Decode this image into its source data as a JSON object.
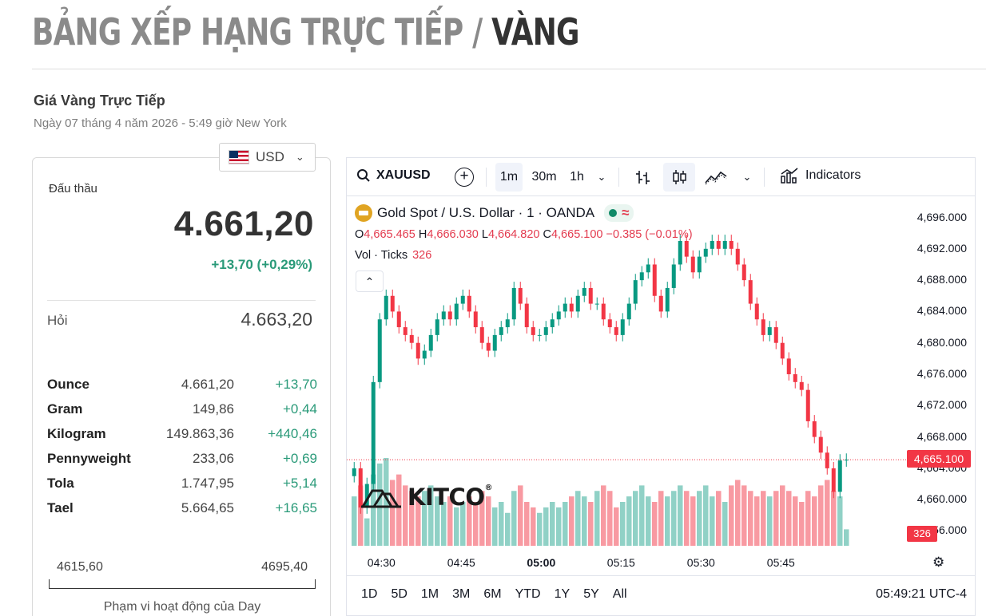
{
  "page_title": {
    "prefix": "BẢNG XẾP HẠNG TRỰC TIẾP / ",
    "metal": "VÀNG"
  },
  "live": {
    "title": "Giá Vàng Trực Tiếp",
    "date": "Ngày 07 tháng 4 năm 2026 - 5:49 giờ New York"
  },
  "currency": {
    "selected": "USD",
    "flag_icon": "us-flag-icon"
  },
  "quote": {
    "bid_label": "Đấu thầu",
    "bid": "4.661,20",
    "change": "+13,70 (+0,29%)",
    "ask_label": "Hỏi",
    "ask": "4.663,20",
    "change_color": "#2a9a79"
  },
  "units": [
    {
      "name": "Ounce",
      "price": "4.661,20",
      "change": "+13,70"
    },
    {
      "name": "Gram",
      "price": "149,86",
      "change": "+0,44"
    },
    {
      "name": "Kilogram",
      "price": "149.863,36",
      "change": "+440,46"
    },
    {
      "name": "Pennyweight",
      "price": "233,06",
      "change": "+0,69"
    },
    {
      "name": "Tola",
      "price": "1.747,95",
      "change": "+5,14"
    },
    {
      "name": "Tael",
      "price": "5.664,65",
      "change": "+16,65"
    }
  ],
  "day_range": {
    "low": "4615,60",
    "high": "4695,40",
    "caption": "Phạm vi hoạt động của Day"
  },
  "toolbar": {
    "symbol": "XAUUSD",
    "intervals": [
      "1m",
      "30m",
      "1h"
    ],
    "active_interval": "1m",
    "indicators_label": "Indicators"
  },
  "legend": {
    "instrument": "Gold Spot / U.S. Dollar · 1 · OANDA",
    "open_label": "O",
    "open": "4,665.465",
    "high_label": "H",
    "high": "4,666.030",
    "low_label": "L",
    "low": "4,664.820",
    "close_label": "C",
    "close": "4,665.100",
    "change": "−0.385 (−0.01%)",
    "vol_label": "Vol · Ticks",
    "vol_value": "326",
    "down_color": "#f23645",
    "up_color": "#089981"
  },
  "watermark": {
    "brand": "KITCO",
    "reg": "®"
  },
  "current_price_badge": "4,665.100",
  "current_volume_badge": "326",
  "bottom": {
    "ranges": [
      "1D",
      "5D",
      "1M",
      "3M",
      "6M",
      "YTD",
      "1Y",
      "5Y",
      "All"
    ],
    "clock": "05:49:21 UTC-4"
  },
  "chart_data": {
    "type": "candlestick",
    "title": "Gold Spot / U.S. Dollar · 1 · OANDA",
    "xlabel": "",
    "ylabel": "",
    "ylim": [
      4653.2,
      4698.7
    ],
    "y_ticks": [
      "4,696.000",
      "4,692.000",
      "4,688.000",
      "4,684.000",
      "4,680.000",
      "4,676.000",
      "4,672.000",
      "4,668.000",
      "4,664.000",
      "4,660.000",
      "4,656.000"
    ],
    "y_tick_values": [
      4696,
      4692,
      4688,
      4684,
      4680,
      4676,
      4672,
      4668,
      4664,
      4660,
      4656
    ],
    "x_ticks": [
      "04:30",
      "04:45",
      "05:00",
      "05:15",
      "05:30",
      "05:45"
    ],
    "x_tick_minutes": [
      270,
      285,
      300,
      315,
      330,
      345
    ],
    "x_bold_tick": "05:00",
    "time_start_minute": 265,
    "last_price": 4665.1,
    "closes": [
      4664,
      4659,
      4662,
      4675,
      4683,
      4686,
      4684,
      4682,
      4681,
      4680,
      4678,
      4679,
      4681,
      4683,
      4684,
      4683,
      4685,
      4686,
      4684,
      4682,
      4680,
      4679,
      4681,
      4682,
      4683,
      4687,
      4685,
      4682,
      4681,
      4681,
      4682,
      4683,
      4684,
      4685,
      4684,
      4686,
      4687,
      4685,
      4685,
      4683,
      4682,
      4681,
      4683,
      4685,
      4688,
      4689,
      4690,
      4686,
      4684,
      4687,
      4690,
      4693,
      4691,
      4689,
      4691,
      4692,
      4693,
      4692,
      4693,
      4692,
      4690,
      4688,
      4685,
      4683,
      4681,
      4682,
      4680,
      4678,
      4676,
      4675,
      4674,
      4670,
      4668,
      4666,
      4664,
      4661,
      4665,
      4665.1
    ],
    "volumes": [
      9,
      11,
      5,
      13,
      15,
      16,
      12,
      13,
      11,
      10,
      9,
      10,
      11,
      9,
      8,
      9,
      7,
      8,
      9,
      8,
      10,
      9,
      7,
      8,
      6,
      10,
      11,
      8,
      7,
      6,
      7,
      8,
      7,
      8,
      9,
      10,
      9,
      8,
      10,
      11,
      10,
      7,
      8,
      9,
      10,
      11,
      9,
      8,
      10,
      9,
      10,
      11,
      10,
      9,
      10,
      11,
      9,
      10,
      8,
      11,
      12,
      11,
      10,
      9,
      10,
      9,
      10,
      11,
      10,
      9,
      8,
      10,
      9,
      11,
      12,
      10,
      9,
      3
    ]
  }
}
